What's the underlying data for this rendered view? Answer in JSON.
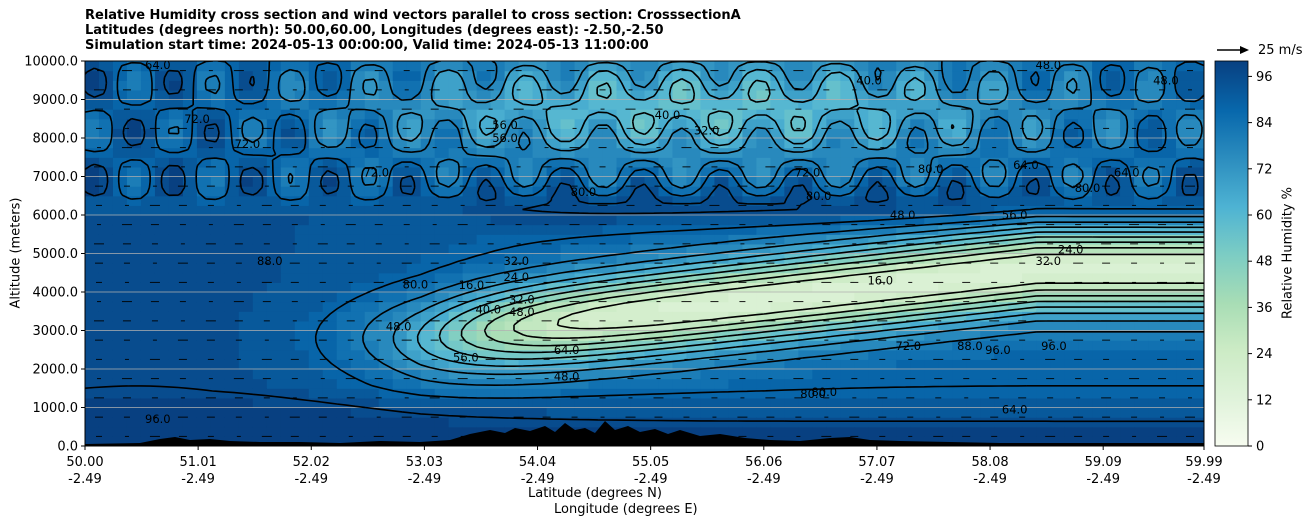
{
  "title_lines": [
    "Relative Humidity cross section and wind vectors parallel to cross section: CrosssectionA",
    "Latitudes (degrees north): 50.00,60.00, Longitudes (degrees east): -2.50,-2.50",
    "Simulation start time: 2024-05-13 00:00:00, Valid time: 2024-05-13 11:00:00"
  ],
  "reference_vector_label": "25 m/s",
  "chart_data": {
    "type": "heatmap",
    "variable": "Relative Humidity",
    "overlay": "contours (every 8%) and wind vectors parallel to cross section",
    "xlabel": "Latitude (degrees N)",
    "xlabel2": "Longitude (degrees E)",
    "ylabel": "Altitude (meters)",
    "colorbar_label": "Relative Humidity %",
    "colormap": "GnBu",
    "colorbar_range": [
      0,
      100
    ],
    "colorbar_ticks": [
      "0",
      "12",
      "24",
      "36",
      "48",
      "60",
      "72",
      "84",
      "96"
    ],
    "xlim": [
      50.0,
      59.99
    ],
    "ylim": [
      0,
      10000
    ],
    "x_ticks": [
      {
        "lat": "50.00",
        "lon": "-2.49"
      },
      {
        "lat": "51.01",
        "lon": "-2.49"
      },
      {
        "lat": "52.02",
        "lon": "-2.49"
      },
      {
        "lat": "53.03",
        "lon": "-2.49"
      },
      {
        "lat": "54.04",
        "lon": "-2.49"
      },
      {
        "lat": "55.05",
        "lon": "-2.49"
      },
      {
        "lat": "56.06",
        "lon": "-2.49"
      },
      {
        "lat": "57.07",
        "lon": "-2.49"
      },
      {
        "lat": "58.08",
        "lon": "-2.49"
      },
      {
        "lat": "59.09",
        "lon": "-2.49"
      },
      {
        "lat": "59.99",
        "lon": "-2.49"
      }
    ],
    "y_ticks": [
      "0.0",
      "1000.0",
      "2000.0",
      "3000.0",
      "4000.0",
      "5000.0",
      "6000.0",
      "7000.0",
      "8000.0",
      "9000.0",
      "10000.0"
    ],
    "grid": "horizontal",
    "contour_levels": [
      0,
      8,
      16,
      24,
      32,
      40,
      48,
      56,
      64,
      72,
      80,
      88,
      96
    ],
    "contour_labels": [
      {
        "x": 53.85,
        "y": 4390,
        "text": "24.0"
      },
      {
        "x": 53.45,
        "y": 4180,
        "text": "16.0"
      },
      {
        "x": 53.9,
        "y": 3800,
        "text": "32.0"
      },
      {
        "x": 53.9,
        "y": 3480,
        "text": "48.0"
      },
      {
        "x": 53.85,
        "y": 4800,
        "text": "32.0"
      },
      {
        "x": 53.6,
        "y": 3550,
        "text": "40.0"
      },
      {
        "x": 52.95,
        "y": 4200,
        "text": "80.0"
      },
      {
        "x": 52.8,
        "y": 3100,
        "text": "48.0"
      },
      {
        "x": 53.4,
        "y": 2300,
        "text": "56.0"
      },
      {
        "x": 54.3,
        "y": 2500,
        "text": "64.0"
      },
      {
        "x": 54.3,
        "y": 1800,
        "text": "48.0"
      },
      {
        "x": 56.6,
        "y": 1400,
        "text": "80.0"
      },
      {
        "x": 57.35,
        "y": 2600,
        "text": "72.0"
      },
      {
        "x": 57.1,
        "y": 4300,
        "text": "16.0"
      },
      {
        "x": 58.6,
        "y": 4800,
        "text": "32.0"
      },
      {
        "x": 58.8,
        "y": 5100,
        "text": "24.0"
      },
      {
        "x": 56.55,
        "y": 6500,
        "text": "80.0"
      },
      {
        "x": 57.55,
        "y": 7200,
        "text": "80.0"
      },
      {
        "x": 58.4,
        "y": 7300,
        "text": "64.0"
      },
      {
        "x": 58.3,
        "y": 6000,
        "text": "56.0"
      },
      {
        "x": 57.3,
        "y": 6000,
        "text": "48.0"
      },
      {
        "x": 56.45,
        "y": 7100,
        "text": "72.0"
      },
      {
        "x": 55.55,
        "y": 8200,
        "text": "32.0"
      },
      {
        "x": 53.75,
        "y": 8340,
        "text": "56.0"
      },
      {
        "x": 53.75,
        "y": 8000,
        "text": "56.0"
      },
      {
        "x": 51.45,
        "y": 7850,
        "text": "72.0"
      },
      {
        "x": 51.0,
        "y": 8500,
        "text": "72.0"
      },
      {
        "x": 51.65,
        "y": 4800,
        "text": "88.0"
      },
      {
        "x": 50.65,
        "y": 9900,
        "text": "64.0"
      },
      {
        "x": 50.65,
        "y": 700,
        "text": "96.0"
      },
      {
        "x": 57.9,
        "y": 2600,
        "text": "88.0"
      },
      {
        "x": 58.15,
        "y": 2500,
        "text": "96.0"
      },
      {
        "x": 58.65,
        "y": 2600,
        "text": "96.0"
      },
      {
        "x": 58.3,
        "y": 950,
        "text": "64.0"
      },
      {
        "x": 56.5,
        "y": 1350,
        "text": "80.0"
      },
      {
        "x": 52.6,
        "y": 7100,
        "text": "72.0"
      },
      {
        "x": 55.2,
        "y": 8600,
        "text": "40.0"
      },
      {
        "x": 57.0,
        "y": 9500,
        "text": "40.0"
      },
      {
        "x": 58.6,
        "y": 9900,
        "text": "48.0"
      },
      {
        "x": 59.65,
        "y": 9500,
        "text": "48.0"
      },
      {
        "x": 59.3,
        "y": 7100,
        "text": "64.0"
      },
      {
        "x": 58.95,
        "y": 6700,
        "text": "80.0"
      },
      {
        "x": 54.45,
        "y": 6600,
        "text": "80.0"
      }
    ]
  }
}
